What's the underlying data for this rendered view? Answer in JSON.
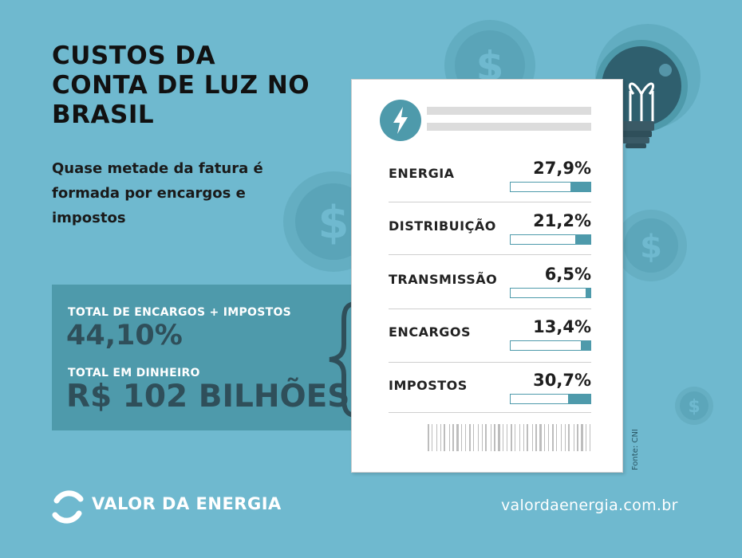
{
  "title": "CUSTOS DA CONTA DE LUZ NO BRASIL",
  "subtitle": "Quase metade da fatura é formada por encargos e impostos",
  "totals": {
    "label_1": "TOTAL DE ENCARGOS +  IMPOSTOS",
    "value_1": "44,10%",
    "label_2": "TOTAL EM DINHEIRO",
    "value_2": "R$ 102 BILHÕES"
  },
  "bill": {
    "items": [
      {
        "name": "ENERGIA",
        "percent_text": "27,9%",
        "value": 27.9
      },
      {
        "name": "DISTRIBUIÇÃO",
        "percent_text": "21,2%",
        "value": 21.2
      },
      {
        "name": "TRANSMISSÃO",
        "percent_text": "6,5%",
        "value": 6.5
      },
      {
        "name": "ENCARGOS",
        "percent_text": "13,4%",
        "value": 13.4
      },
      {
        "name": "IMPOSTOS",
        "percent_text": "30,7%",
        "value": 30.7
      }
    ],
    "source": "Fonte: CNI"
  },
  "footer": {
    "brand": "VALOR DA ENERGIA",
    "website": "valordaenergia.com.br"
  },
  "colors": {
    "background": "#6fb9cf",
    "accent": "#4e9aab",
    "dark_teal": "#2f4f5a",
    "coin": "#5fa9bd"
  },
  "icons": [
    "dollar-coin-icon",
    "light-bulb-icon",
    "lightning-bolt-icon",
    "curly-brace-icon",
    "barcode-icon",
    "brand-logo-icon"
  ]
}
